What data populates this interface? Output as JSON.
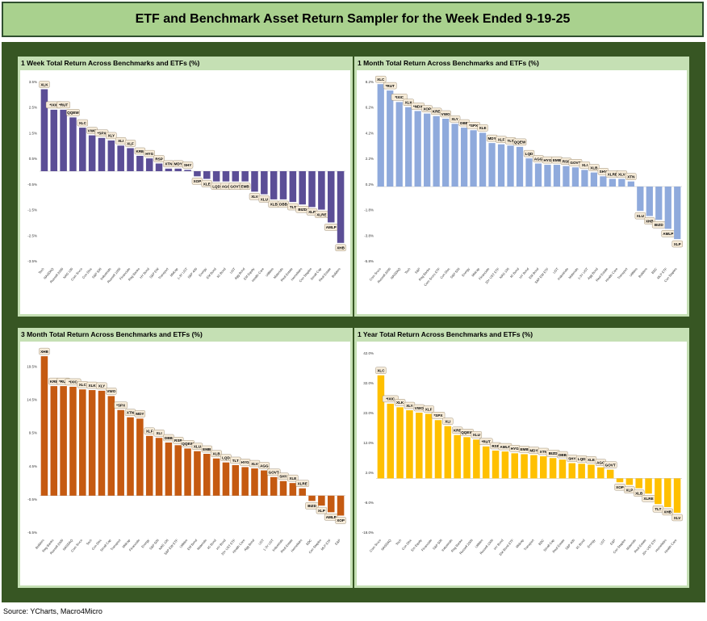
{
  "title": "ETF and Benchmark Asset Return Sampler for the Week Ended 9-19-25",
  "source": "Source: YCharts, Macro4Micro",
  "chart_data": [
    {
      "type": "bar",
      "title": "1 Week Total Return Across Benchmarks and ETFs (%)",
      "color": "#5b4e96",
      "ylim": [
        -3.5,
        3.5
      ],
      "yticks": [
        3.5,
        2.5,
        1.5,
        0.5,
        -0.5,
        -1.5,
        -2.5,
        -3.5
      ],
      "ytick_labels": [
        "3.5%",
        "2.5%",
        "1.5%",
        "0.5%",
        "-0.5%",
        "-1.5%",
        "-2.5%",
        "-3.5%"
      ],
      "categories": [
        "Tech",
        "NASDAQ",
        "Russell 2000",
        "NAS 100",
        "Com Srvcs",
        "Con Disc",
        "S&P 500",
        "Industrials",
        "Russell 1000",
        "Financials",
        "Reg Banks",
        "HY Bond",
        "S&P EW",
        "Transport",
        "Midcap",
        "1-3Y UST",
        "S&P 400",
        "Energy",
        "EM Bond",
        "IG Bond",
        "UST",
        "Agg Bond",
        "EM Equity",
        "Health Care",
        "Utilities",
        "Materials",
        "Real Estate",
        "Homebldrs",
        "Con Staples",
        "Small Cap",
        "Real Estate",
        "Builders"
      ],
      "labels": [
        "XLK",
        "*IXIC",
        "*RUT",
        "QQEW",
        "XLC",
        "VWO",
        "*SPX",
        "XLY",
        "XLI",
        "XLF",
        "KRE",
        "HYG",
        "RSP",
        "XTN",
        "MDY",
        "SHY",
        "XOP",
        "XLE",
        "LQD",
        "AGG",
        "GOVT",
        "EMB",
        "XLV",
        "XLU",
        "XLB",
        "DBB",
        "TLT",
        "BIZD",
        "XLP",
        "XLRE",
        "AMLP",
        "XHB"
      ],
      "values": [
        3.2,
        2.4,
        2.4,
        2.1,
        1.7,
        1.4,
        1.3,
        1.2,
        1.0,
        0.9,
        0.6,
        0.5,
        0.3,
        0.1,
        0.1,
        0.05,
        -0.2,
        -0.3,
        -0.4,
        -0.4,
        -0.4,
        -0.4,
        -0.8,
        -0.9,
        -1.1,
        -1.1,
        -1.2,
        -1.3,
        -1.4,
        -1.5,
        -2.0,
        -2.8
      ]
    },
    {
      "type": "bar",
      "title": "1 Month Total Return Across Benchmarks and ETFs (%)",
      "color": "#8faadc",
      "ylim": [
        -5.8,
        8.2
      ],
      "yticks": [
        8.2,
        6.2,
        4.2,
        2.2,
        0.2,
        -1.8,
        -3.8,
        -5.8
      ],
      "ytick_labels": [
        "8.2%",
        "6.2%",
        "4.2%",
        "2.2%",
        "0.2%",
        "-1.8%",
        "-3.8%",
        "-5.8%"
      ],
      "categories": [
        "Com Srvcs",
        "Russell 2000",
        "NASDAQ",
        "Tech",
        "S&P",
        "Reg Banks",
        "Com Srvcs ETF",
        "Con Disc",
        "S&P 500",
        "Energy",
        "Midcap",
        "Financials",
        "20+ UST ETF",
        "NAS 100",
        "IG Bond",
        "HY Bond",
        "EM Bond",
        "S&P EW ETF",
        "UST",
        "Industrials",
        "Materials",
        "1-3Y UST",
        "Agg Bond",
        "Real Estate",
        "Health Care",
        "Transport",
        "Utilities",
        "Builders",
        "BDC",
        "MLP ETF",
        "Con Staples"
      ],
      "labels": [
        "XLC",
        "*RUT",
        "*IXIC",
        "XLK",
        "*NDX",
        "XOP",
        "KRE",
        "VWO",
        "XLY",
        "DBB",
        "*SPX",
        "XLE",
        "MDY",
        "XLF",
        "TLT",
        "QQEW",
        "LQD",
        "AGG",
        "HYG",
        "EMB",
        "RSP",
        "GOVT",
        "XLI",
        "XLB",
        "SHY",
        "XLRE",
        "XLV",
        "XTN",
        "XLU",
        "XHB",
        "BIZD",
        "AMLP",
        "XLP"
      ],
      "values": [
        8.0,
        7.5,
        6.6,
        6.2,
        5.9,
        5.7,
        5.5,
        5.3,
        4.9,
        4.6,
        4.4,
        4.2,
        3.4,
        3.3,
        3.2,
        3.1,
        2.2,
        1.8,
        1.7,
        1.7,
        1.6,
        1.5,
        1.3,
        1.1,
        0.8,
        0.6,
        0.6,
        0.4,
        -1.9,
        -2.3,
        -2.6,
        -3.3,
        -4.1
      ]
    },
    {
      "type": "bar",
      "title": "3 Month Total Return Across Benchmarks and ETFs (%)",
      "color": "#c55a11",
      "ylim": [
        -5.5,
        21.5
      ],
      "yticks": [
        19.5,
        14.5,
        9.5,
        4.5,
        -0.5,
        -5.5
      ],
      "ytick_labels": [
        "19.5%",
        "14.5%",
        "9.5%",
        "4.5%",
        "-0.5%",
        "-5.5%"
      ],
      "categories": [
        "Builders",
        "Reg Banks",
        "Russell 2000",
        "NASDAQ",
        "Com Srvcs",
        "Tech",
        "Con Disc",
        "Small Cap",
        "Transport",
        "Midcap",
        "Financials",
        "Energy",
        "S&P 500",
        "NAS 100",
        "S&P EW ETF",
        "Utilities",
        "EM Bond",
        "Materials",
        "IG Bond",
        "HY Bond",
        "20+ UST ETF",
        "Health Care",
        "Agg Bond",
        "UST",
        "1-3Y UST",
        "Industrials",
        "Real Estate",
        "Homebldrs",
        "BDC",
        "Con Staples",
        "MLP ETF",
        "E&P"
      ],
      "labels": [
        "XHB",
        "KRE",
        "*RUT",
        "*IXIC",
        "XLC",
        "XLK",
        "XLY",
        "VWO",
        "*SPX",
        "XTN",
        "MDY",
        "XLF",
        "XLI",
        "DBB",
        "RSP",
        "QQEW",
        "XLU",
        "EMB",
        "XLB",
        "LQD",
        "TLT",
        "HYG",
        "XLV",
        "AGG",
        "GOVT",
        "SHY",
        "XLE",
        "XLRE",
        "BIZD",
        "XLP",
        "AMLP",
        "XOP"
      ],
      "values": [
        21.0,
        16.5,
        16.5,
        16.4,
        16.0,
        15.9,
        15.8,
        15.0,
        12.9,
        11.8,
        11.6,
        9.0,
        8.7,
        8.0,
        7.6,
        7.1,
        6.7,
        6.3,
        5.6,
        5.0,
        4.6,
        4.3,
        4.1,
        3.8,
        2.8,
        2.2,
        1.9,
        1.1,
        -0.8,
        -1.5,
        -2.5,
        -3.0
      ]
    },
    {
      "type": "bar",
      "title": "1 Year Total Return Across Benchmarks and ETFs (%)",
      "color": "#ffc000",
      "ylim": [
        -18,
        42
      ],
      "yticks": [
        42,
        32,
        22,
        12,
        2,
        -8,
        -18
      ],
      "ytick_labels": [
        "42.0%",
        "32.0%",
        "22.0%",
        "12.0%",
        "2.0%",
        "-8.0%",
        "-18.0%"
      ],
      "categories": [
        "Com Srvcs",
        "NASDAQ",
        "Tech",
        "Con Disc",
        "Em Equity",
        "Financials",
        "S&P 500",
        "Industrials",
        "Reg Banks",
        "Russell 2000",
        "Utilities",
        "Russell 1000",
        "HY Bond",
        "EM Bond ETF",
        "Midcap",
        "Transport",
        "BDC",
        "Small Cap",
        "Real Estate",
        "S&P 400",
        "IG Bond",
        "Energy",
        "UST",
        "E&P",
        "Con Staples",
        "Materials",
        "Real Estate",
        "20+ UST ETF",
        "Homebldrs",
        "Health Care"
      ],
      "labels": [
        "XLC",
        "*IXIC",
        "XLK",
        "XLY",
        "VWO",
        "XLF",
        "*SPX",
        "XLI",
        "KRE",
        "QQEW",
        "XLU",
        "*RUT",
        "RSP",
        "AMLP",
        "HYG",
        "EMB",
        "MDY",
        "XTN",
        "BIZD",
        "DBB",
        "SHY",
        "LQD",
        "XLE",
        "AGG",
        "GOVT",
        "XOP",
        "XLP",
        "XLB",
        "XLRE",
        "TLT",
        "XHB",
        "XLV"
      ],
      "values": [
        34.5,
        25.0,
        23.8,
        22.8,
        22.0,
        21.6,
        19.5,
        17.5,
        14.5,
        13.8,
        13.0,
        10.7,
        9.3,
        9.0,
        8.4,
        8.1,
        7.8,
        7.4,
        6.8,
        6.3,
        5.1,
        4.9,
        4.6,
        3.7,
        2.9,
        -1.3,
        -2.2,
        -3.3,
        -5.1,
        -8.6,
        -9.6,
        -11.5
      ]
    }
  ]
}
